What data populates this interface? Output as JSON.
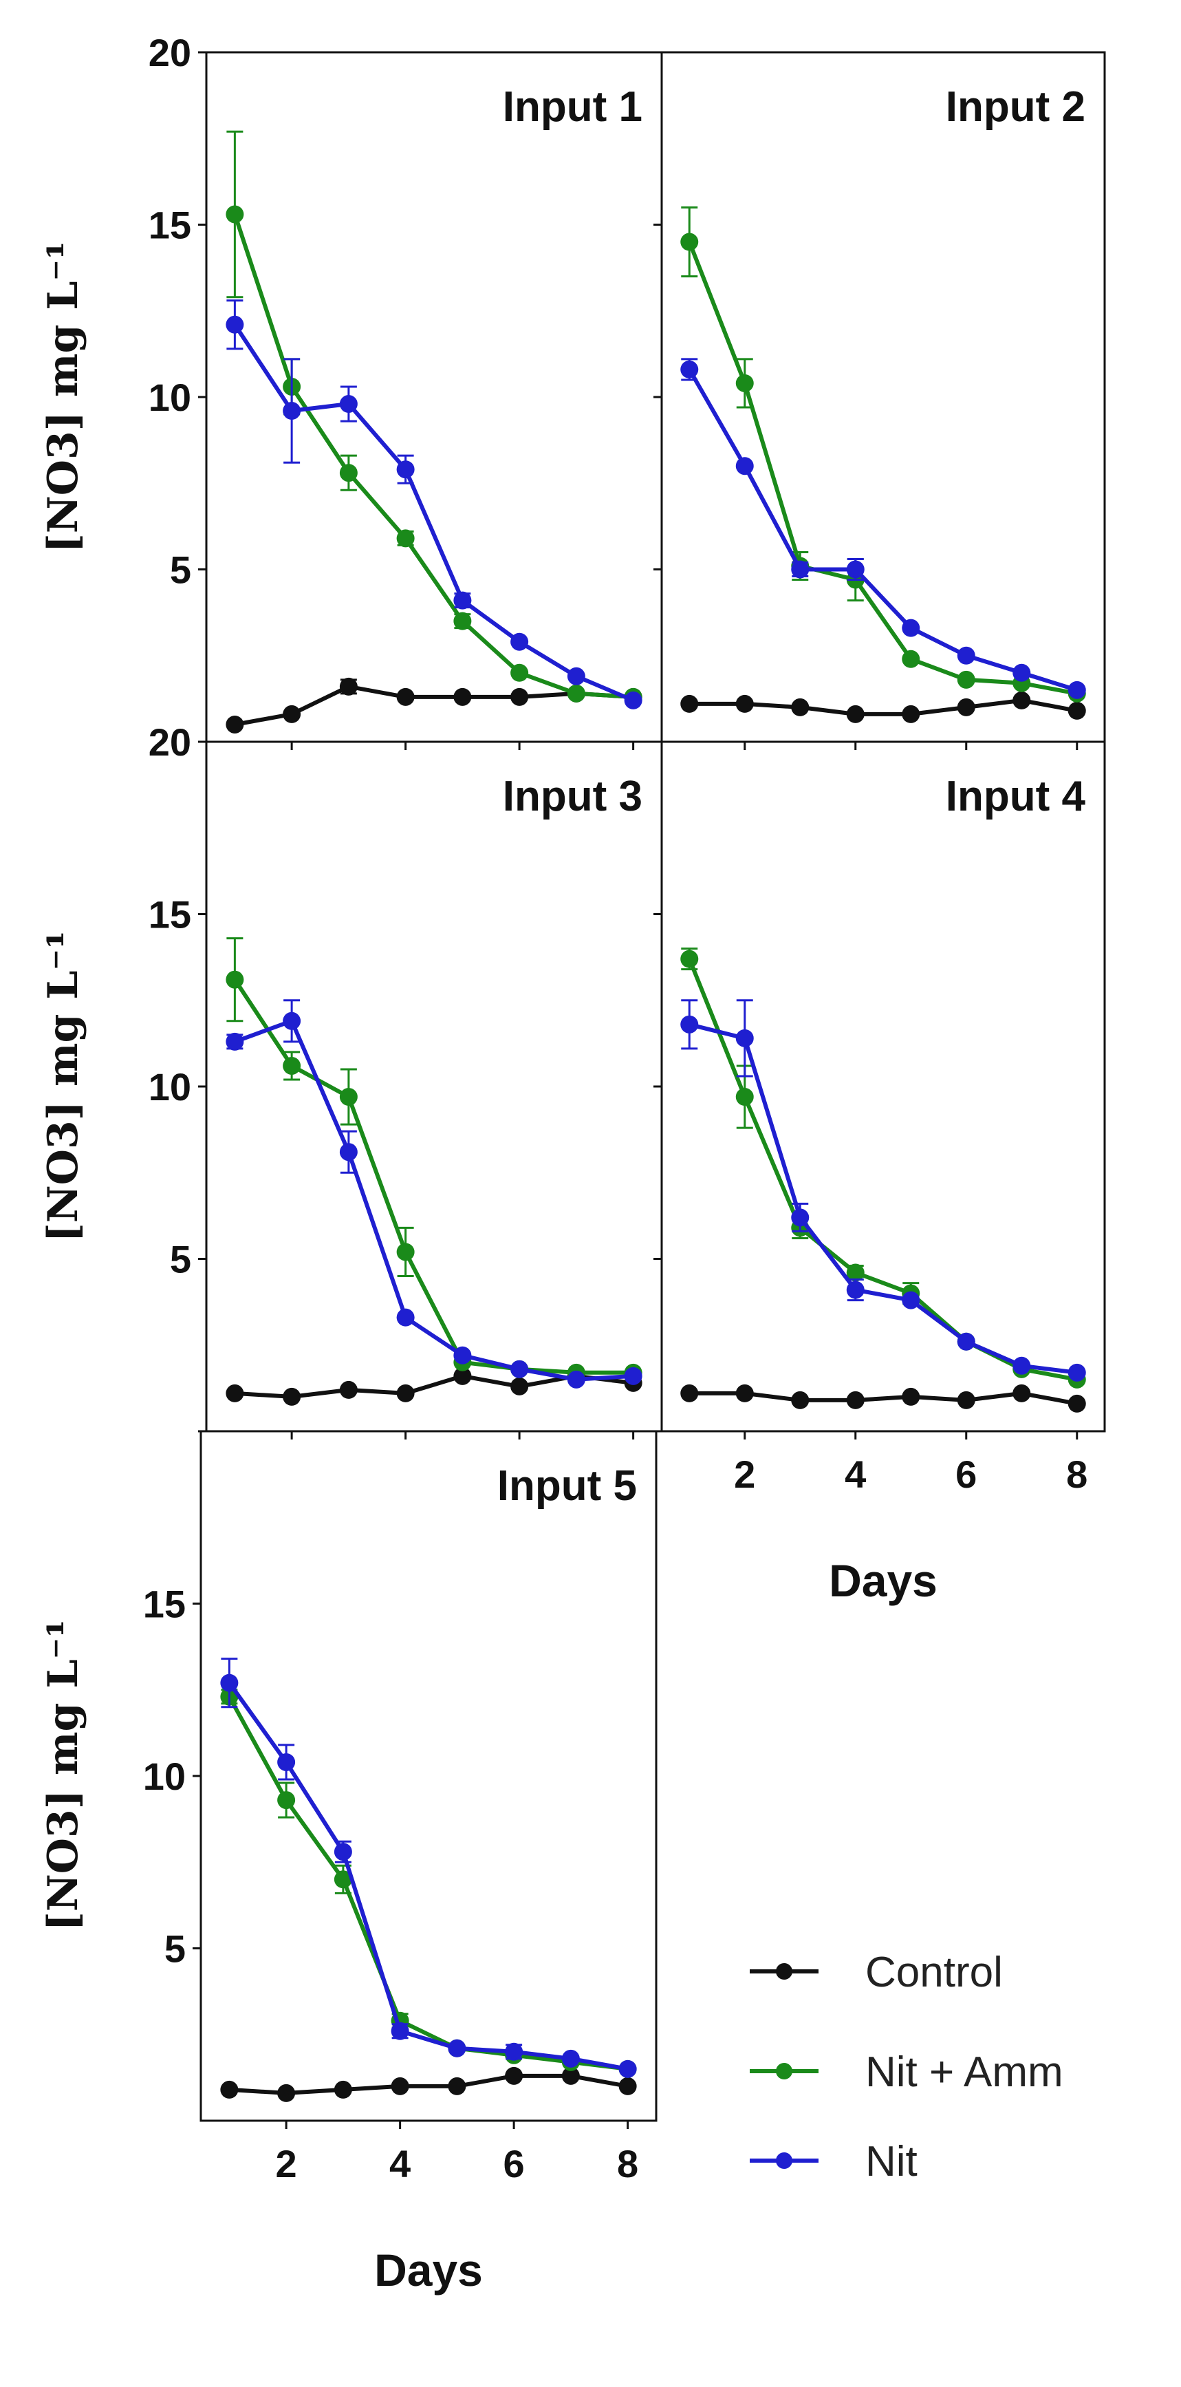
{
  "chart_data": {
    "type": "line",
    "figure_title": "",
    "ylabel": "[NO3] mg L⁻¹",
    "xlabel": "Days",
    "colors": {
      "Control": "#111111",
      "Nit + Amm": "#1a8a1a",
      "Nit": "#1f1fd0"
    },
    "legend": {
      "position": "bottom-right",
      "entries": [
        "Control",
        "Nit + Amm",
        "Nit"
      ]
    },
    "panels": [
      {
        "title": "Input 1",
        "x": [
          1,
          2,
          3,
          4,
          5,
          6,
          7,
          8
        ],
        "xlim": [
          0.5,
          8.5
        ],
        "ylim": [
          0,
          20
        ],
        "y_ticks": [
          0,
          5,
          10,
          15,
          20
        ],
        "y_tick_labels": [
          "",
          "5",
          "10",
          "15",
          "20"
        ],
        "x_ticks": [
          2,
          4,
          6,
          8
        ],
        "x_tick_labels": [],
        "series": [
          {
            "name": "Control",
            "values": [
              0.5,
              0.8,
              1.6,
              1.3,
              1.3,
              1.3,
              1.4,
              1.3
            ],
            "errors": [
              0,
              0,
              0.2,
              0,
              0,
              0,
              0,
              0
            ]
          },
          {
            "name": "Nit + Amm",
            "values": [
              15.3,
              10.3,
              7.8,
              5.9,
              3.5,
              2.0,
              1.4,
              1.3
            ],
            "errors": [
              2.4,
              0.8,
              0.5,
              0.2,
              0.2,
              0,
              0,
              0
            ]
          },
          {
            "name": "Nit",
            "values": [
              12.1,
              9.6,
              9.8,
              7.9,
              4.1,
              2.9,
              1.9,
              1.2
            ],
            "errors": [
              0.7,
              1.5,
              0.5,
              0.4,
              0.2,
              0,
              0,
              0
            ]
          }
        ]
      },
      {
        "title": "Input 2",
        "x": [
          1,
          2,
          3,
          4,
          5,
          6,
          7,
          8
        ],
        "xlim": [
          0.5,
          8.5
        ],
        "ylim": [
          0,
          20
        ],
        "y_ticks": [
          0,
          5,
          10,
          15,
          20
        ],
        "y_tick_labels": [],
        "x_ticks": [
          2,
          4,
          6,
          8
        ],
        "x_tick_labels": [],
        "series": [
          {
            "name": "Control",
            "values": [
              1.1,
              1.1,
              1.0,
              0.8,
              0.8,
              1.0,
              1.2,
              0.9
            ],
            "errors": [
              0,
              0,
              0,
              0,
              0,
              0,
              0,
              0
            ]
          },
          {
            "name": "Nit + Amm",
            "values": [
              14.5,
              10.4,
              5.1,
              4.7,
              2.4,
              1.8,
              1.7,
              1.4
            ],
            "errors": [
              1.0,
              0.7,
              0.4,
              0.6,
              0,
              0,
              0,
              0
            ]
          },
          {
            "name": "Nit",
            "values": [
              10.8,
              8.0,
              5.0,
              5.0,
              3.3,
              2.5,
              2.0,
              1.5
            ],
            "errors": [
              0.3,
              0,
              0.2,
              0.3,
              0,
              0,
              0,
              0
            ]
          }
        ]
      },
      {
        "title": "Input 3",
        "x": [
          1,
          2,
          3,
          4,
          5,
          6,
          7,
          8
        ],
        "xlim": [
          0.5,
          8.5
        ],
        "ylim": [
          0,
          20
        ],
        "y_ticks": [
          0,
          5,
          10,
          15,
          20
        ],
        "y_tick_labels": [
          "",
          "5",
          "10",
          "15",
          "20"
        ],
        "x_ticks": [
          2,
          4,
          6,
          8
        ],
        "x_tick_labels": [],
        "series": [
          {
            "name": "Control",
            "values": [
              1.1,
              1.0,
              1.2,
              1.1,
              1.6,
              1.3,
              1.6,
              1.4
            ],
            "errors": [
              0,
              0,
              0,
              0,
              0,
              0,
              0,
              0
            ]
          },
          {
            "name": "Nit + Amm",
            "values": [
              13.1,
              10.6,
              9.7,
              5.2,
              2.0,
              1.8,
              1.7,
              1.7
            ],
            "errors": [
              1.2,
              0.4,
              0.8,
              0.7,
              0,
              0,
              0,
              0
            ]
          },
          {
            "name": "Nit",
            "values": [
              11.3,
              11.9,
              8.1,
              3.3,
              2.2,
              1.8,
              1.5,
              1.6
            ],
            "errors": [
              0.2,
              0.6,
              0.6,
              0,
              0,
              0,
              0,
              0
            ]
          }
        ]
      },
      {
        "title": "Input 4",
        "x": [
          1,
          2,
          3,
          4,
          5,
          6,
          7,
          8
        ],
        "xlim": [
          0.5,
          8.5
        ],
        "ylim": [
          0,
          20
        ],
        "y_ticks": [
          0,
          5,
          10,
          15,
          20
        ],
        "y_tick_labels": [],
        "x_ticks": [
          2,
          4,
          6,
          8
        ],
        "x_tick_labels": [
          "2",
          "4",
          "6",
          "8"
        ],
        "series": [
          {
            "name": "Control",
            "values": [
              1.1,
              1.1,
              0.9,
              0.9,
              1.0,
              0.9,
              1.1,
              0.8
            ],
            "errors": [
              0,
              0,
              0,
              0,
              0,
              0,
              0,
              0
            ]
          },
          {
            "name": "Nit + Amm",
            "values": [
              13.7,
              9.7,
              5.9,
              4.6,
              4.0,
              2.6,
              1.8,
              1.5
            ],
            "errors": [
              0.3,
              0.9,
              0.3,
              0.2,
              0.3,
              0,
              0,
              0
            ]
          },
          {
            "name": "Nit",
            "values": [
              11.8,
              11.4,
              6.2,
              4.1,
              3.8,
              2.6,
              1.9,
              1.7
            ],
            "errors": [
              0.7,
              1.1,
              0.4,
              0.3,
              0,
              0,
              0,
              0
            ]
          }
        ]
      },
      {
        "title": "Input 5",
        "x": [
          1,
          2,
          3,
          4,
          5,
          6,
          7,
          8
        ],
        "xlim": [
          0.5,
          8.5
        ],
        "ylim": [
          0,
          20
        ],
        "y_ticks": [
          5,
          10,
          15
        ],
        "y_tick_labels": [
          "5",
          "10",
          "15"
        ],
        "x_ticks": [
          2,
          4,
          6,
          8
        ],
        "x_tick_labels": [
          "2",
          "4",
          "6",
          "8"
        ],
        "series": [
          {
            "name": "Control",
            "values": [
              0.9,
              0.8,
              0.9,
              1.0,
              1.0,
              1.3,
              1.3,
              1.0
            ],
            "errors": [
              0,
              0,
              0,
              0,
              0,
              0,
              0,
              0
            ]
          },
          {
            "name": "Nit + Amm",
            "values": [
              12.3,
              9.3,
              7.0,
              2.9,
              2.1,
              1.9,
              1.7,
              1.5
            ],
            "errors": [
              0.2,
              0.5,
              0.4,
              0.2,
              0,
              0,
              0,
              0
            ]
          },
          {
            "name": "Nit",
            "values": [
              12.7,
              10.4,
              7.8,
              2.6,
              2.1,
              2.0,
              1.8,
              1.5
            ],
            "errors": [
              0.7,
              0.5,
              0.3,
              0.2,
              0,
              0.2,
              0,
              0
            ]
          }
        ]
      }
    ]
  }
}
